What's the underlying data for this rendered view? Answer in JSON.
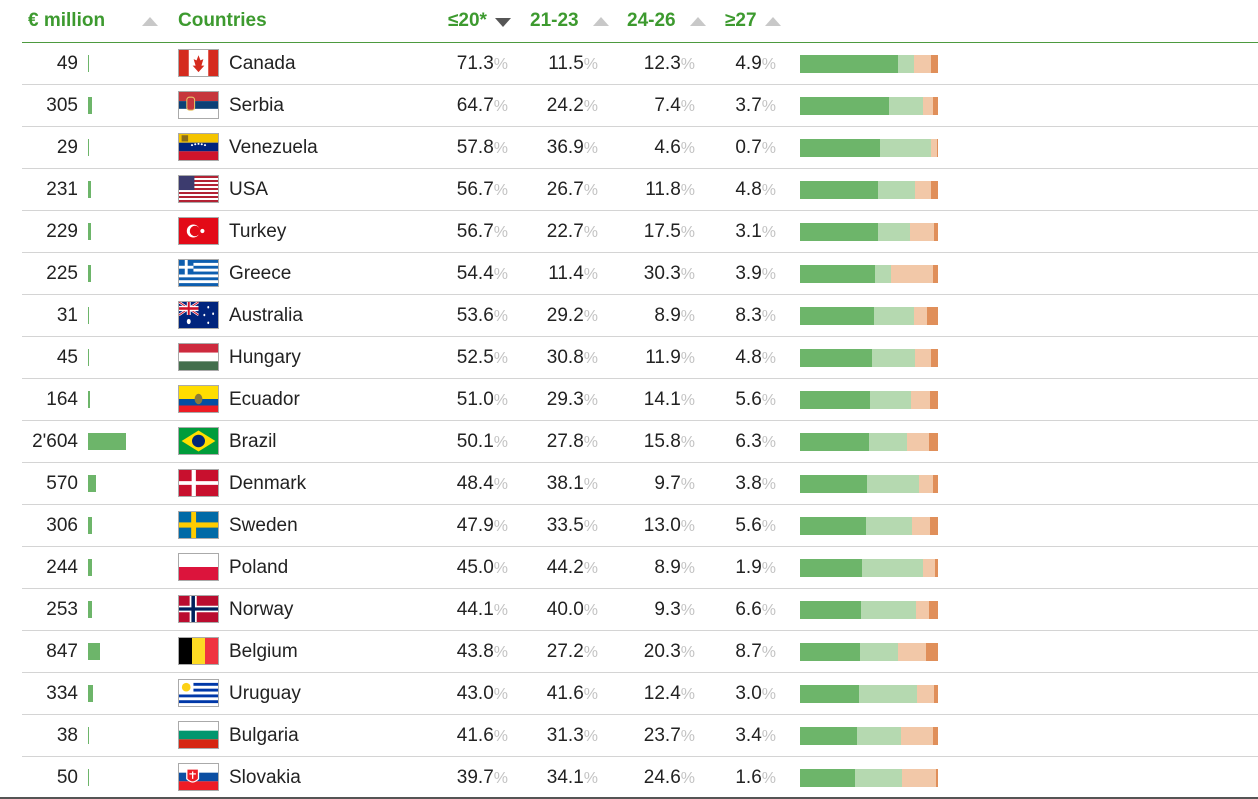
{
  "header": {
    "col_money": "€ million",
    "col_country": "Countries",
    "col_p1": "≤20*",
    "col_p2": "21-23",
    "col_p3": "24-26",
    "col_p4": "≥27"
  },
  "colors": {
    "accent": "#3d9a2f",
    "seg1": "#6db56a",
    "seg2": "#b5d9b0",
    "seg3": "#f2c8a8",
    "seg4": "#e08f5a"
  },
  "pct_symbol": "%",
  "rows": [
    {
      "money": "49",
      "money_value": 49,
      "country": "Canada",
      "flag": "canada-flag-icon",
      "p1": "71.3",
      "p2": "11.5",
      "p3": "12.3",
      "p4": "4.9"
    },
    {
      "money": "305",
      "money_value": 305,
      "country": "Serbia",
      "flag": "serbia-flag-icon",
      "p1": "64.7",
      "p2": "24.2",
      "p3": "7.4",
      "p4": "3.7"
    },
    {
      "money": "29",
      "money_value": 29,
      "country": "Venezuela",
      "flag": "venezuela-flag-icon",
      "p1": "57.8",
      "p2": "36.9",
      "p3": "4.6",
      "p4": "0.7"
    },
    {
      "money": "231",
      "money_value": 231,
      "country": "USA",
      "flag": "usa-flag-icon",
      "p1": "56.7",
      "p2": "26.7",
      "p3": "11.8",
      "p4": "4.8"
    },
    {
      "money": "229",
      "money_value": 229,
      "country": "Turkey",
      "flag": "turkey-flag-icon",
      "p1": "56.7",
      "p2": "22.7",
      "p3": "17.5",
      "p4": "3.1"
    },
    {
      "money": "225",
      "money_value": 225,
      "country": "Greece",
      "flag": "greece-flag-icon",
      "p1": "54.4",
      "p2": "11.4",
      "p3": "30.3",
      "p4": "3.9"
    },
    {
      "money": "31",
      "money_value": 31,
      "country": "Australia",
      "flag": "australia-flag-icon",
      "p1": "53.6",
      "p2": "29.2",
      "p3": "8.9",
      "p4": "8.3"
    },
    {
      "money": "45",
      "money_value": 45,
      "country": "Hungary",
      "flag": "hungary-flag-icon",
      "p1": "52.5",
      "p2": "30.8",
      "p3": "11.9",
      "p4": "4.8"
    },
    {
      "money": "164",
      "money_value": 164,
      "country": "Ecuador",
      "flag": "ecuador-flag-icon",
      "p1": "51.0",
      "p2": "29.3",
      "p3": "14.1",
      "p4": "5.6"
    },
    {
      "money": "2'604",
      "money_value": 2604,
      "country": "Brazil",
      "flag": "brazil-flag-icon",
      "p1": "50.1",
      "p2": "27.8",
      "p3": "15.8",
      "p4": "6.3"
    },
    {
      "money": "570",
      "money_value": 570,
      "country": "Denmark",
      "flag": "denmark-flag-icon",
      "p1": "48.4",
      "p2": "38.1",
      "p3": "9.7",
      "p4": "3.8"
    },
    {
      "money": "306",
      "money_value": 306,
      "country": "Sweden",
      "flag": "sweden-flag-icon",
      "p1": "47.9",
      "p2": "33.5",
      "p3": "13.0",
      "p4": "5.6"
    },
    {
      "money": "244",
      "money_value": 244,
      "country": "Poland",
      "flag": "poland-flag-icon",
      "p1": "45.0",
      "p2": "44.2",
      "p3": "8.9",
      "p4": "1.9"
    },
    {
      "money": "253",
      "money_value": 253,
      "country": "Norway",
      "flag": "norway-flag-icon",
      "p1": "44.1",
      "p2": "40.0",
      "p3": "9.3",
      "p4": "6.6"
    },
    {
      "money": "847",
      "money_value": 847,
      "country": "Belgium",
      "flag": "belgium-flag-icon",
      "p1": "43.8",
      "p2": "27.2",
      "p3": "20.3",
      "p4": "8.7"
    },
    {
      "money": "334",
      "money_value": 334,
      "country": "Uruguay",
      "flag": "uruguay-flag-icon",
      "p1": "43.0",
      "p2": "41.6",
      "p3": "12.4",
      "p4": "3.0"
    },
    {
      "money": "38",
      "money_value": 38,
      "country": "Bulgaria",
      "flag": "bulgaria-flag-icon",
      "p1": "41.6",
      "p2": "31.3",
      "p3": "23.7",
      "p4": "3.4"
    },
    {
      "money": "50",
      "money_value": 50,
      "country": "Slovakia",
      "flag": "slovakia-flag-icon",
      "p1": "39.7",
      "p2": "34.1",
      "p3": "24.6",
      "p4": "1.6"
    }
  ]
}
